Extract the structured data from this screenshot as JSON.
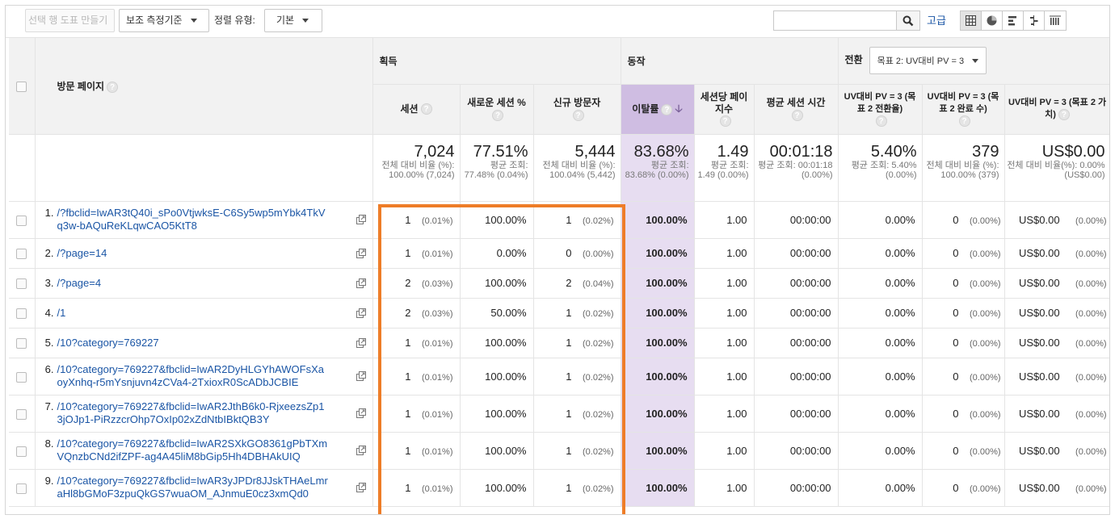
{
  "toolbar": {
    "create_chart_label": "선택 행 도표 만들기",
    "secondary_dimension_label": "보조 측정기준",
    "sort_type_label": "정렬 유형:",
    "sort_type_value": "기본",
    "search_placeholder": "",
    "advanced_label": "고급",
    "view_icons": [
      "grid-icon",
      "pie-icon",
      "bar-icon",
      "compare-icon",
      "pivot-icon"
    ]
  },
  "header": {
    "page_col": "방문 페이지",
    "groups": {
      "acquisition": "획득",
      "behavior": "동작",
      "conversion": "전환"
    },
    "goal_select": "목표 2: UV대비 PV = 3",
    "columns": [
      "세션",
      "새로운 세션 %",
      "신규 방문자",
      "이탈률",
      "세션당 페이지수",
      "평균 세션 시간",
      "UV대비 PV = 3 (목표 2 전환율)",
      "UV대비 PV = 3 (목표 2 완료 수)",
      "UV대비 PV = 3 (목표 2 가치)"
    ]
  },
  "totals": [
    {
      "big": "7,024",
      "small": "전체 대비 비율 (%): 100.00% (7,024)"
    },
    {
      "big": "77.51%",
      "small": "평균 조회: 77.48% (0.04%)"
    },
    {
      "big": "5,444",
      "small": "전체 대비 비율 (%): 100.04% (5,442)"
    },
    {
      "big": "83.68%",
      "small": "평균 조회: 83.68% (0.00%)"
    },
    {
      "big": "1.49",
      "small": "평균 조회: 1.49 (0.00%)"
    },
    {
      "big": "00:01:18",
      "small": "평균 조회: 00:01:18 (0.00%)"
    },
    {
      "big": "5.40%",
      "small": "평균 조회: 5.40% (0.00%)"
    },
    {
      "big": "379",
      "small": "전체 대비 비율 (%): 100.00% (379)"
    },
    {
      "big": "US$0.00",
      "small": "전체 대비 비율(%): 0.00% (US$0.00)"
    }
  ],
  "rows": [
    {
      "idx": "1.",
      "page": "/?fbclid=IwAR3tQ40i_sPo0VtjwksE-C6Sy5wp5mYbk4TkVq3w-bAQuReKLqwCAO5KtT8",
      "sessions": "1",
      "sessions_pct": "(0.01%)",
      "new_pct": "100.00%",
      "new_users": "1",
      "new_users_pct": "(0.02%)",
      "bounce": "100.00%",
      "ppv": "1.00",
      "dur": "00:00:00",
      "conv_rate": "0.00%",
      "conv": "0",
      "conv_pct": "(0.00%)",
      "value": "US$0.00",
      "value_pct": "(0.00%)"
    },
    {
      "idx": "2.",
      "page": "/?page=14",
      "sessions": "1",
      "sessions_pct": "(0.01%)",
      "new_pct": "0.00%",
      "new_users": "0",
      "new_users_pct": "(0.00%)",
      "bounce": "100.00%",
      "ppv": "1.00",
      "dur": "00:00:00",
      "conv_rate": "0.00%",
      "conv": "0",
      "conv_pct": "(0.00%)",
      "value": "US$0.00",
      "value_pct": "(0.00%)"
    },
    {
      "idx": "3.",
      "page": "/?page=4",
      "sessions": "2",
      "sessions_pct": "(0.03%)",
      "new_pct": "100.00%",
      "new_users": "2",
      "new_users_pct": "(0.04%)",
      "bounce": "100.00%",
      "ppv": "1.00",
      "dur": "00:00:00",
      "conv_rate": "0.00%",
      "conv": "0",
      "conv_pct": "(0.00%)",
      "value": "US$0.00",
      "value_pct": "(0.00%)"
    },
    {
      "idx": "4.",
      "page": "/1",
      "sessions": "2",
      "sessions_pct": "(0.03%)",
      "new_pct": "50.00%",
      "new_users": "1",
      "new_users_pct": "(0.02%)",
      "bounce": "100.00%",
      "ppv": "1.00",
      "dur": "00:00:00",
      "conv_rate": "0.00%",
      "conv": "0",
      "conv_pct": "(0.00%)",
      "value": "US$0.00",
      "value_pct": "(0.00%)"
    },
    {
      "idx": "5.",
      "page": "/10?category=769227",
      "sessions": "1",
      "sessions_pct": "(0.01%)",
      "new_pct": "100.00%",
      "new_users": "1",
      "new_users_pct": "(0.02%)",
      "bounce": "100.00%",
      "ppv": "1.00",
      "dur": "00:00:00",
      "conv_rate": "0.00%",
      "conv": "0",
      "conv_pct": "(0.00%)",
      "value": "US$0.00",
      "value_pct": "(0.00%)"
    },
    {
      "idx": "6.",
      "page": "/10?category=769227&fbclid=IwAR2DyHLGYhAWOFsXaoyXnhq-r5mYsnjuvn4zCVa4-2TxioxR0ScADbJCBIE",
      "sessions": "1",
      "sessions_pct": "(0.01%)",
      "new_pct": "100.00%",
      "new_users": "1",
      "new_users_pct": "(0.02%)",
      "bounce": "100.00%",
      "ppv": "1.00",
      "dur": "00:00:00",
      "conv_rate": "0.00%",
      "conv": "0",
      "conv_pct": "(0.00%)",
      "value": "US$0.00",
      "value_pct": "(0.00%)"
    },
    {
      "idx": "7.",
      "page": "/10?category=769227&fbclid=IwAR2JthB6k0-RjxeezsZp13jOJp1-PiRzzcrOhp7OxIp02xZdNtbIBktQB3Y",
      "sessions": "1",
      "sessions_pct": "(0.01%)",
      "new_pct": "100.00%",
      "new_users": "1",
      "new_users_pct": "(0.02%)",
      "bounce": "100.00%",
      "ppv": "1.00",
      "dur": "00:00:00",
      "conv_rate": "0.00%",
      "conv": "0",
      "conv_pct": "(0.00%)",
      "value": "US$0.00",
      "value_pct": "(0.00%)"
    },
    {
      "idx": "8.",
      "page": "/10?category=769227&fbclid=IwAR2SXkGO8361gPbTXmVQnzbCNd2ifZPF-ag4A45liM8bGip5Hh4DBHAkUIQ",
      "sessions": "1",
      "sessions_pct": "(0.01%)",
      "new_pct": "100.00%",
      "new_users": "1",
      "new_users_pct": "(0.02%)",
      "bounce": "100.00%",
      "ppv": "1.00",
      "dur": "00:00:00",
      "conv_rate": "0.00%",
      "conv": "0",
      "conv_pct": "(0.00%)",
      "value": "US$0.00",
      "value_pct": "(0.00%)"
    },
    {
      "idx": "9.",
      "page": "/10?category=769227&fbclid=IwAR3yJPDr8JJskTHAeLmraHl8bGMoF3zpuQkGS7wuaOM_AJnmuE0cz3xmQd0",
      "sessions": "1",
      "sessions_pct": "(0.01%)",
      "new_pct": "100.00%",
      "new_users": "1",
      "new_users_pct": "(0.02%)",
      "bounce": "100.00%",
      "ppv": "1.00",
      "dur": "00:00:00",
      "conv_rate": "0.00%",
      "conv": "0",
      "conv_pct": "(0.00%)",
      "value": "US$0.00",
      "value_pct": "(0.00%)"
    }
  ]
}
